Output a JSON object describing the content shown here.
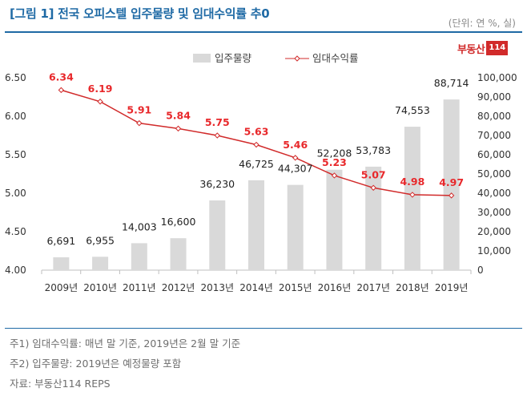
{
  "header": {
    "title": "[그림 1] 전국 오피스텔 입주물량 및 임대수익률 추0",
    "unit": "(단위: 연 %, 실)"
  },
  "logo": {
    "text": "부동산",
    "box": "114"
  },
  "colors": {
    "accent": "#1f6aa5",
    "bar": "#d9d9d9",
    "line": "#d12b2b",
    "label": "#e8282b"
  },
  "chart_data": {
    "type": "bar",
    "categories": [
      "2009년",
      "2010년",
      "2011년",
      "2012년",
      "2013년",
      "2014년",
      "2015년",
      "2016년",
      "2017년",
      "2018년",
      "2019년"
    ],
    "series": [
      {
        "name": "입주물량",
        "type": "bar",
        "axis": "right",
        "values": [
          6691,
          6955,
          14003,
          16600,
          36230,
          46725,
          44307,
          52208,
          53783,
          74553,
          88714
        ],
        "labels": [
          "6,691",
          "6,955",
          "14,003",
          "16,600",
          "36,230",
          "46,725",
          "44,307",
          "52,208",
          "53,783",
          "74,553",
          "88,714"
        ]
      },
      {
        "name": "임대수익률",
        "type": "line",
        "axis": "left",
        "values": [
          6.34,
          6.19,
          5.91,
          5.84,
          5.75,
          5.63,
          5.46,
          5.23,
          5.07,
          4.98,
          4.97
        ],
        "labels": [
          "6.34",
          "6.19",
          "5.91",
          "5.84",
          "5.75",
          "5.63",
          "5.46",
          "5.23",
          "5.07",
          "4.98",
          "4.97"
        ]
      }
    ],
    "ylim_left": [
      4.0,
      6.5
    ],
    "yticks_left": [
      "6.50",
      "6.00",
      "5.50",
      "5.00",
      "4.50",
      "4.00"
    ],
    "ylim_right": [
      0,
      100000
    ],
    "yticks_right": [
      "100,000",
      "90,000",
      "80,000",
      "70,000",
      "60,000",
      "50,000",
      "40,000",
      "30,000",
      "20,000",
      "10,000",
      "0"
    ],
    "legend": "top-center",
    "grid": false
  },
  "notes": [
    "주1) 임대수익률: 매년 말 기준, 2019년은 2월 말 기준",
    "주2) 입주물량: 2019년은 예정물량 포함",
    "자료: 부동산114 REPS"
  ]
}
